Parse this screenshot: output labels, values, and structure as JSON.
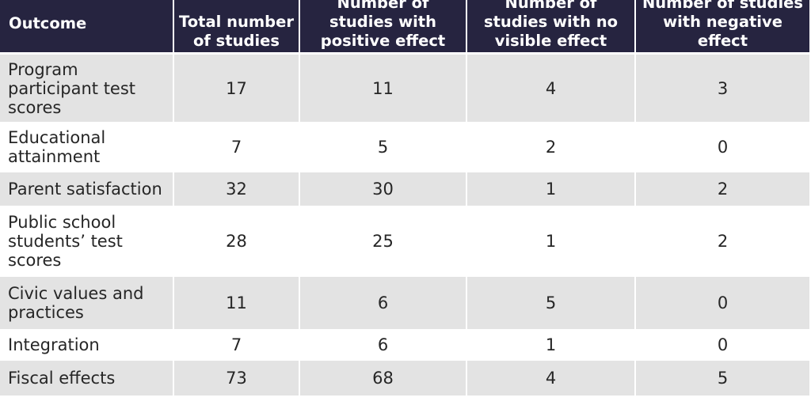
{
  "table": {
    "headers": [
      "Outcome",
      "Total number of studies",
      "Number of studies with positive effect",
      "Number of studies with no visible effect",
      "Number of studies with negative effect"
    ],
    "rows": [
      {
        "outcome": "Program participant test scores",
        "total": "17",
        "positive": "11",
        "no_effect": "4",
        "negative": "3"
      },
      {
        "outcome": "Educational attainment",
        "total": "7",
        "positive": "5",
        "no_effect": "2",
        "negative": "0"
      },
      {
        "outcome": "Parent satisfaction",
        "total": "32",
        "positive": "30",
        "no_effect": "1",
        "negative": "2"
      },
      {
        "outcome": "Public school students’ test scores",
        "total": "28",
        "positive": "25",
        "no_effect": "1",
        "negative": "2"
      },
      {
        "outcome": "Civic values and practices",
        "total": "11",
        "positive": "6",
        "no_effect": "5",
        "negative": "0"
      },
      {
        "outcome": "Integration",
        "total": "7",
        "positive": "6",
        "no_effect": "1",
        "negative": "0"
      },
      {
        "outcome": "Fiscal effects",
        "total": "73",
        "positive": "68",
        "no_effect": "4",
        "negative": "5"
      }
    ]
  },
  "colors": {
    "header_bg": "#262440",
    "header_text": "#ffffff",
    "row_shade": "#e3e3e3",
    "row_plain": "#ffffff",
    "body_text": "#262626"
  }
}
